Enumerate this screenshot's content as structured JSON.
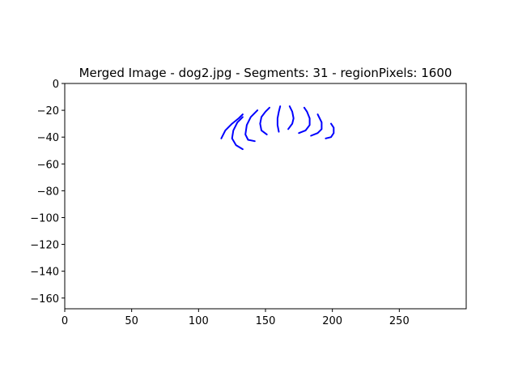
{
  "chart_data": {
    "type": "line",
    "title": "Merged Image - dog2.jpg - Segments: 31 - regionPixels: 1600",
    "xlabel": "",
    "ylabel": "",
    "xlim": [
      0,
      300
    ],
    "ylim": [
      -168,
      0
    ],
    "x_ticks": [
      0,
      50,
      100,
      150,
      200,
      250
    ],
    "y_ticks": [
      0,
      -20,
      -40,
      -60,
      -80,
      -100,
      -120,
      -140,
      -160
    ],
    "grid": false,
    "legend": "none",
    "line_color": "#0000ff",
    "series": [
      {
        "x": [
          117,
          120,
          125,
          130,
          133
        ],
        "y": [
          -41,
          -35,
          -30,
          -26,
          -23
        ]
      },
      {
        "x": [
          133,
          128,
          125,
          126,
          129,
          133
        ],
        "y": [
          -49,
          -46,
          -41,
          -35,
          -29,
          -25
        ]
      },
      {
        "x": [
          142,
          137,
          135,
          136,
          139,
          144
        ],
        "y": [
          -43,
          -42,
          -38,
          -31,
          -25,
          -20
        ]
      },
      {
        "x": [
          151,
          147,
          146,
          147,
          150,
          153
        ],
        "y": [
          -38,
          -35,
          -30,
          -25,
          -21,
          -18
        ]
      },
      {
        "x": [
          160,
          159,
          159,
          160,
          161
        ],
        "y": [
          -36,
          -31,
          -26,
          -21,
          -17
        ]
      },
      {
        "x": [
          167,
          170,
          171,
          170,
          168
        ],
        "y": [
          -34,
          -30,
          -26,
          -21,
          -17
        ]
      },
      {
        "x": [
          175,
          180,
          183,
          183,
          181,
          179
        ],
        "y": [
          -37,
          -35,
          -31,
          -26,
          -21,
          -18
        ]
      },
      {
        "x": [
          184,
          189,
          192,
          192,
          189
        ],
        "y": [
          -39,
          -37,
          -34,
          -29,
          -23
        ]
      },
      {
        "x": [
          195,
          199,
          201,
          201,
          199
        ],
        "y": [
          -41,
          -40,
          -37,
          -33,
          -30
        ]
      }
    ]
  }
}
